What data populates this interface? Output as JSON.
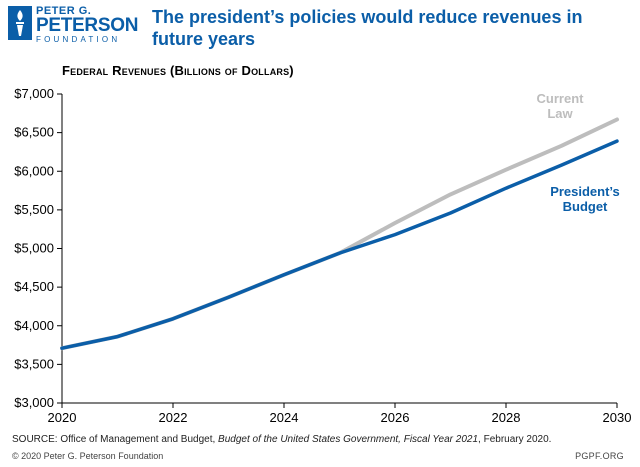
{
  "logo": {
    "line1": "PETER G.",
    "line2": "PETERSON",
    "line3": "FOUNDATION"
  },
  "headline": "The president’s policies would reduce revenues in future years",
  "chart_data": {
    "type": "line",
    "title": "Federal Revenues (Billions of Dollars)",
    "xlabel": "",
    "ylabel": "",
    "x": [
      2020,
      2021,
      2022,
      2023,
      2024,
      2025,
      2026,
      2027,
      2028,
      2029,
      2030
    ],
    "xticks": [
      2020,
      2022,
      2024,
      2026,
      2028,
      2030
    ],
    "xtick_labels": [
      "2020",
      "2022",
      "2024",
      "2026",
      "2028",
      "2030"
    ],
    "yticks": [
      3000,
      3500,
      4000,
      4500,
      5000,
      5500,
      6000,
      6500,
      7000
    ],
    "ytick_labels": [
      "$3,000",
      "$3,500",
      "$4,000",
      "$4,500",
      "$5,000",
      "$5,500",
      "$6,000",
      "$6,500",
      "$7,000"
    ],
    "xlim": [
      2020,
      2030
    ],
    "ylim": [
      3000,
      7000
    ],
    "series": [
      {
        "name": "Current Law",
        "label_lines": [
          "Current",
          "Law"
        ],
        "color": "#bdbdbd",
        "values": [
          3710,
          3860,
          4090,
          4370,
          4660,
          4940,
          5330,
          5700,
          6020,
          6330,
          6670
        ]
      },
      {
        "name": "President's Budget",
        "label_lines": [
          "President’s",
          "Budget"
        ],
        "color": "#0b5ea8",
        "values": [
          3710,
          3860,
          4090,
          4370,
          4660,
          4940,
          5180,
          5460,
          5780,
          6080,
          6390
        ]
      }
    ]
  },
  "source": {
    "prefix": "SOURCE: Office of Management and Budget, ",
    "italic": "Budget of the United States Government, Fiscal Year 2021",
    "suffix": ", February 2020."
  },
  "footer": {
    "copyright": "© 2020 Peter G. Peterson Foundation",
    "site": "PGPF.ORG"
  }
}
